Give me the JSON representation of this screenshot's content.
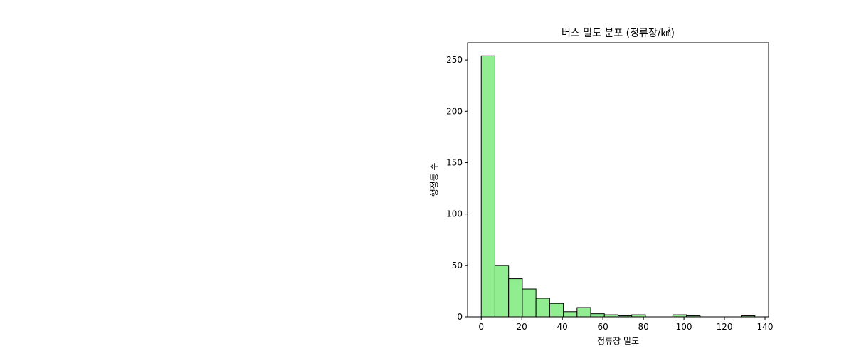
{
  "chart_data": {
    "type": "bar",
    "title": "버스 밀도 분포 (정류장/㎢)",
    "xlabel": "정류장 밀도",
    "ylabel": "행정동 수",
    "bin_edges": [
      0,
      6.75,
      13.5,
      20.25,
      27,
      33.75,
      40.5,
      47.25,
      54,
      60.75,
      67.5,
      74.25,
      81,
      87.75,
      94.5,
      101.25,
      108,
      114.75,
      121.5,
      128.25,
      135
    ],
    "values": [
      254,
      50,
      37,
      27,
      18,
      13,
      5,
      9,
      3,
      2,
      1,
      2,
      0,
      0,
      2,
      1,
      0,
      0,
      0,
      1
    ],
    "xlim": [
      -6.75,
      141.75
    ],
    "ylim": [
      0,
      266.7
    ],
    "xticks": [
      0,
      20,
      40,
      60,
      80,
      100,
      120,
      140
    ],
    "xtick_labels": [
      "0",
      "20",
      "40",
      "60",
      "80",
      "100",
      "120",
      "140"
    ],
    "yticks": [
      0,
      50,
      100,
      150,
      200,
      250
    ],
    "ytick_labels": [
      "0",
      "50",
      "100",
      "150",
      "200",
      "250"
    ],
    "grid": false,
    "bar_color": "#90ee90",
    "edge_color": "#000000"
  }
}
